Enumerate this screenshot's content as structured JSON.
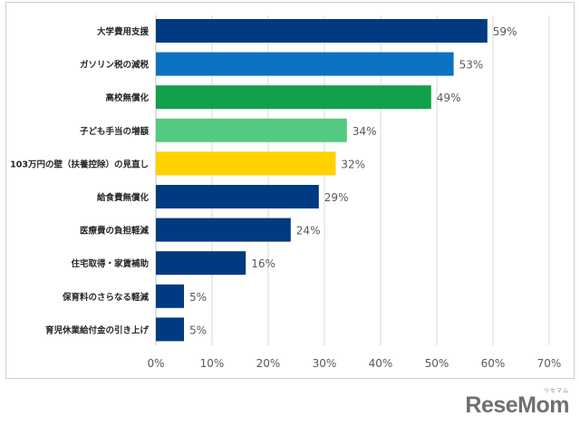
{
  "chart_data": {
    "type": "bar",
    "orientation": "horizontal",
    "categories": [
      "大学費用支援",
      "ガソリン税の減税",
      "高校無償化",
      "子ども手当の増額",
      "103万円の壁（扶養控除）の見直し",
      "給食費無償化",
      "医療費の負担軽減",
      "住宅取得・家賃補助",
      "保育料のさらなる軽減",
      "育児休業給付金の引き上げ"
    ],
    "values": [
      59,
      53,
      49,
      34,
      32,
      29,
      24,
      16,
      5,
      5
    ],
    "value_labels": [
      "59%",
      "53%",
      "49%",
      "34%",
      "32%",
      "29%",
      "24%",
      "16%",
      "5%",
      "5%"
    ],
    "bar_colors": [
      "#003a80",
      "#0b72c2",
      "#11a14a",
      "#55c97f",
      "#ffd200",
      "#003a80",
      "#003a80",
      "#003a80",
      "#003a80",
      "#003a80"
    ],
    "xlim": [
      0,
      70
    ],
    "xticks": [
      0,
      10,
      20,
      30,
      40,
      50,
      60,
      70
    ],
    "xtick_labels": [
      "0%",
      "10%",
      "20%",
      "30%",
      "40%",
      "50%",
      "60%",
      "70%"
    ],
    "grid": "vertical",
    "title": "",
    "xlabel": "",
    "ylabel": ""
  },
  "watermark": {
    "text": "ReseMom",
    "ruby": "リセマム"
  }
}
